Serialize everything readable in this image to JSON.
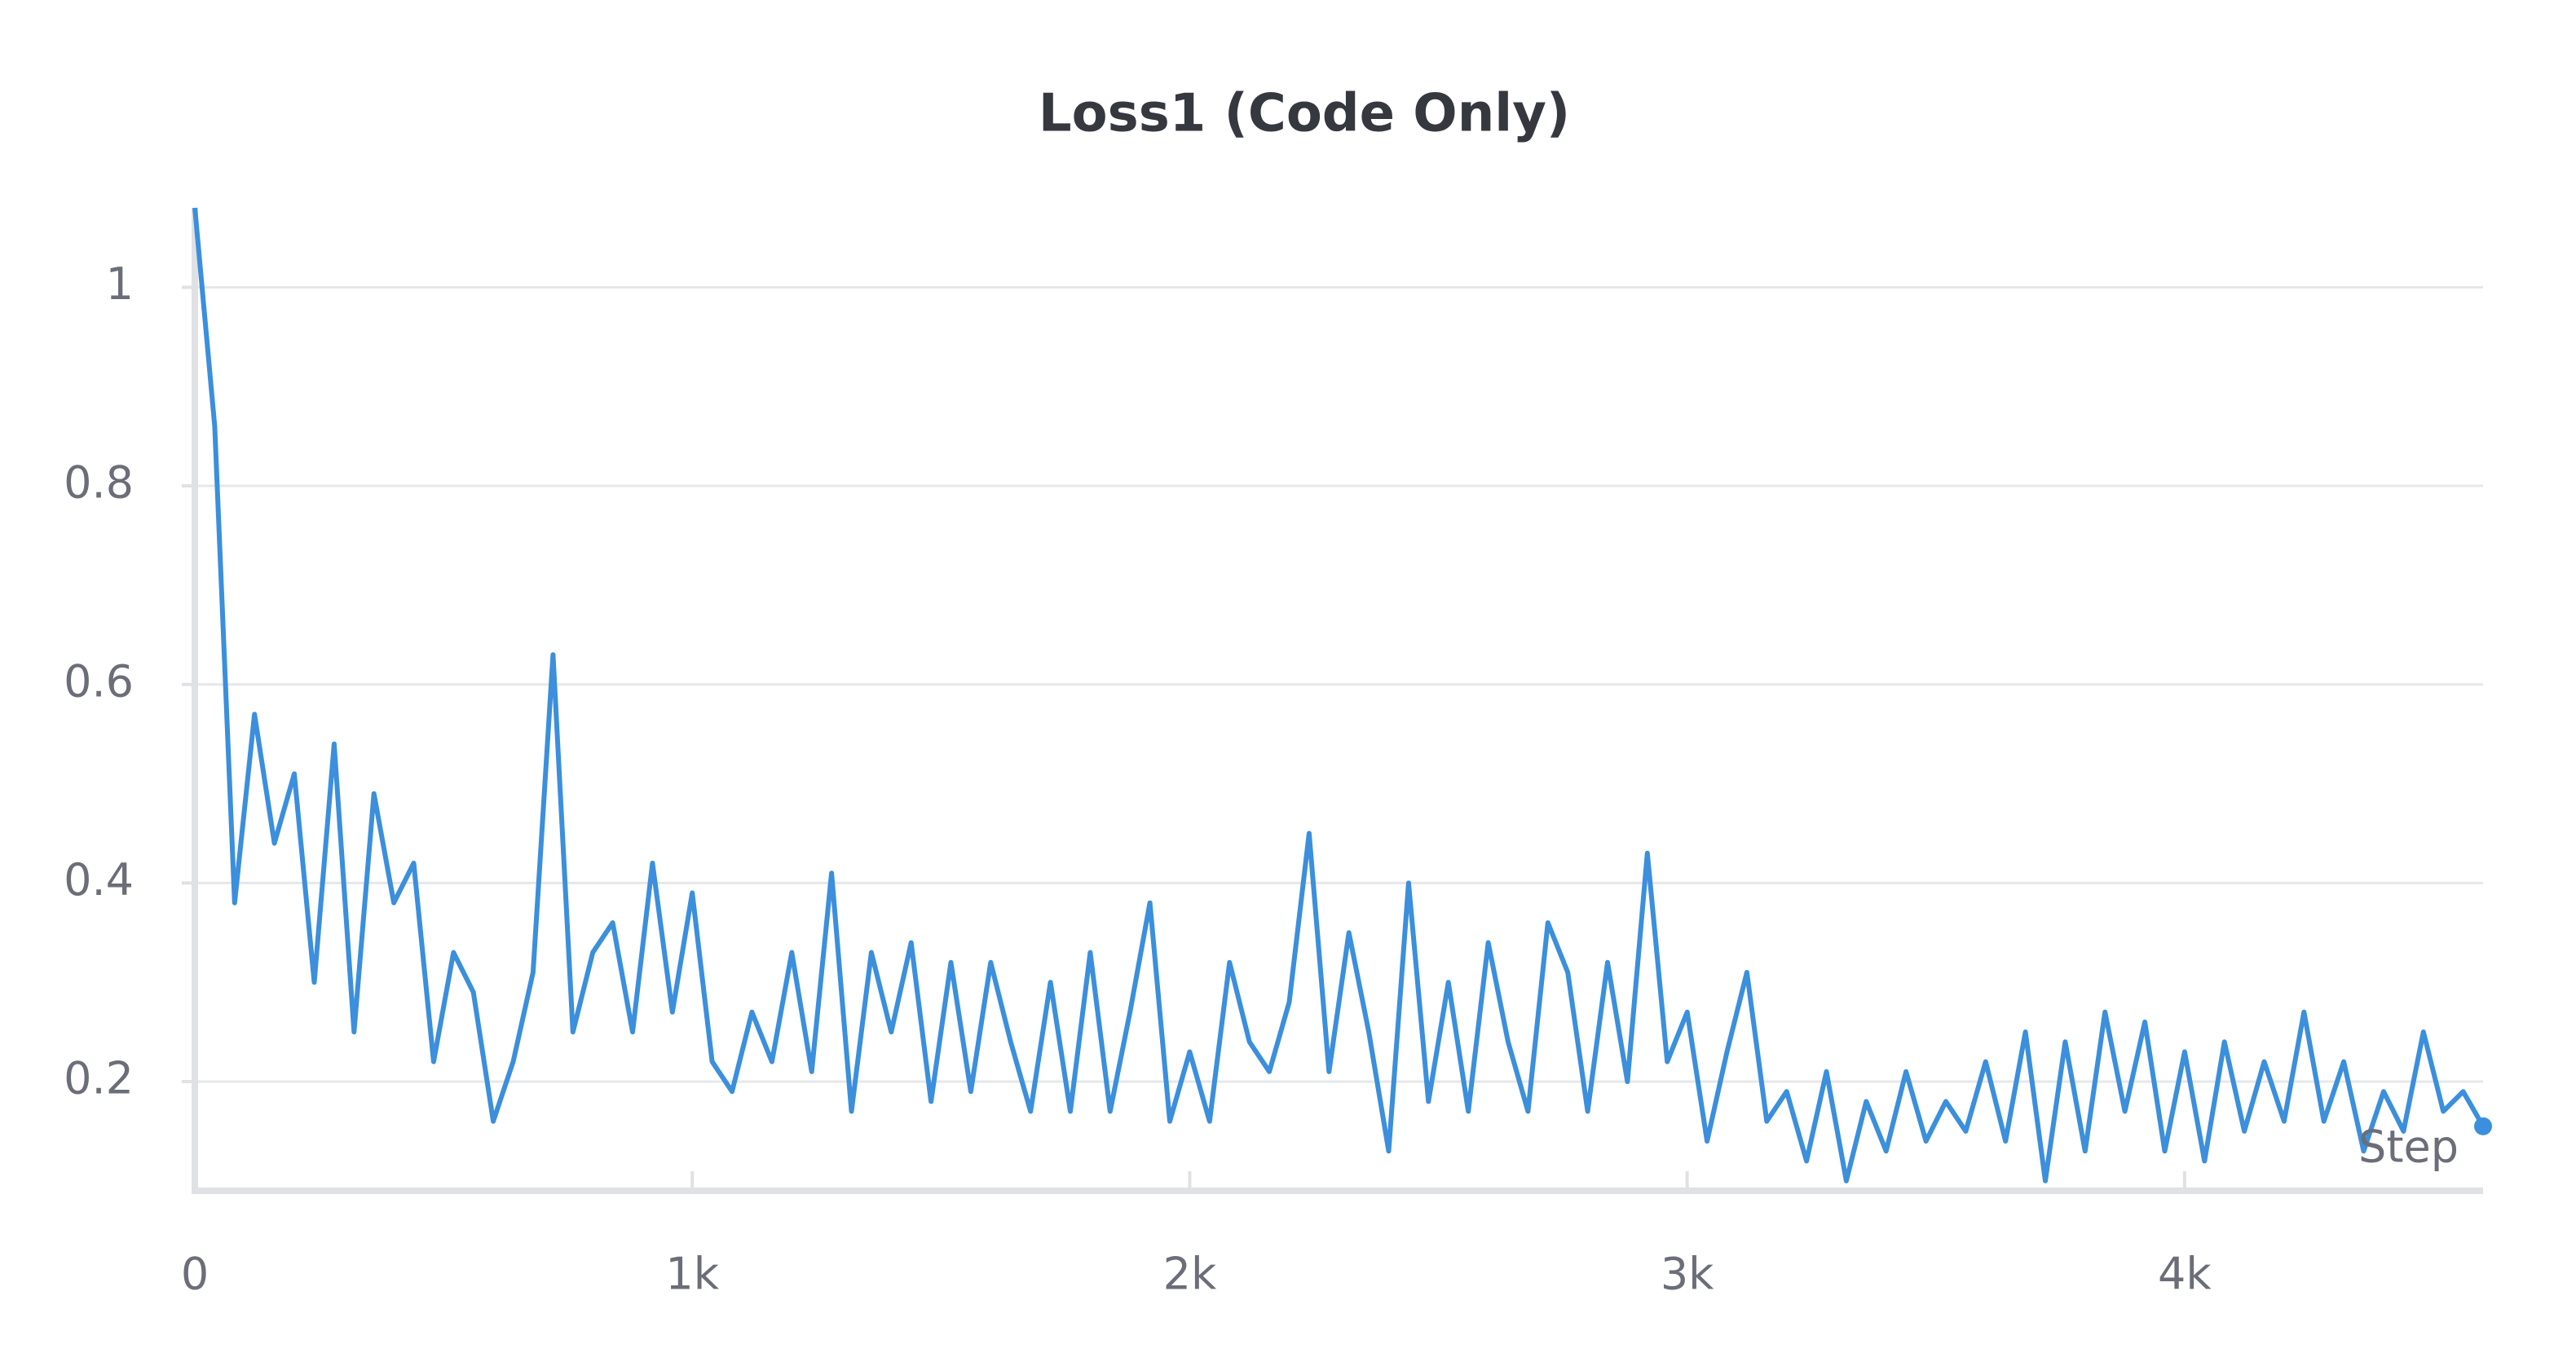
{
  "chart_data": {
    "type": "line",
    "title": "Loss1 (Code Only)",
    "x_label": "Step",
    "color": "#3b8fdc",
    "x": [
      0,
      40,
      80,
      120,
      160,
      200,
      240,
      280,
      320,
      360,
      400,
      440,
      480,
      520,
      560,
      600,
      640,
      680,
      720,
      760,
      800,
      840,
      880,
      920,
      960,
      1000,
      1040,
      1080,
      1120,
      1160,
      1200,
      1240,
      1280,
      1320,
      1360,
      1400,
      1440,
      1480,
      1520,
      1560,
      1600,
      1640,
      1680,
      1720,
      1760,
      1800,
      1840,
      1880,
      1920,
      1960,
      2000,
      2040,
      2080,
      2120,
      2160,
      2200,
      2240,
      2280,
      2320,
      2360,
      2400,
      2440,
      2480,
      2520,
      2560,
      2600,
      2640,
      2680,
      2720,
      2760,
      2800,
      2840,
      2880,
      2920,
      2960,
      3000,
      3040,
      3080,
      3120,
      3160,
      3200,
      3240,
      3280,
      3320,
      3360,
      3400,
      3440,
      3480,
      3520,
      3560,
      3600,
      3640,
      3680,
      3720,
      3760,
      3800,
      3840,
      3880,
      3920,
      3960,
      4000,
      4040,
      4080,
      4120,
      4160,
      4200,
      4240,
      4280,
      4320,
      4360,
      4400,
      4440,
      4480,
      4520,
      4560,
      4600
    ],
    "values": [
      1.08,
      0.86,
      0.38,
      0.57,
      0.44,
      0.51,
      0.3,
      0.54,
      0.25,
      0.49,
      0.38,
      0.42,
      0.22,
      0.33,
      0.29,
      0.16,
      0.22,
      0.31,
      0.63,
      0.25,
      0.33,
      0.36,
      0.25,
      0.42,
      0.27,
      0.39,
      0.22,
      0.19,
      0.27,
      0.22,
      0.33,
      0.21,
      0.41,
      0.17,
      0.33,
      0.25,
      0.34,
      0.18,
      0.32,
      0.19,
      0.32,
      0.24,
      0.17,
      0.3,
      0.17,
      0.33,
      0.17,
      0.27,
      0.38,
      0.16,
      0.23,
      0.16,
      0.32,
      0.24,
      0.21,
      0.28,
      0.45,
      0.21,
      0.35,
      0.25,
      0.13,
      0.4,
      0.18,
      0.3,
      0.17,
      0.34,
      0.24,
      0.17,
      0.36,
      0.31,
      0.17,
      0.32,
      0.2,
      0.43,
      0.22,
      0.27,
      0.14,
      0.23,
      0.31,
      0.16,
      0.19,
      0.12,
      0.21,
      0.1,
      0.18,
      0.13,
      0.21,
      0.14,
      0.18,
      0.15,
      0.22,
      0.14,
      0.25,
      0.1,
      0.24,
      0.13,
      0.27,
      0.17,
      0.26,
      0.13,
      0.23,
      0.12,
      0.24,
      0.15,
      0.22,
      0.16,
      0.27,
      0.16,
      0.22,
      0.13,
      0.19,
      0.15,
      0.25,
      0.17,
      0.19,
      0.155
    ],
    "xlim": [
      0,
      4600
    ],
    "ylim": [
      0.09,
      1.08
    ],
    "xticks": [
      0,
      {
        "value": 1000,
        "label": "1k"
      },
      {
        "value": 2000,
        "label": "2k"
      },
      {
        "value": 3000,
        "label": "3k"
      },
      {
        "value": 4000,
        "label": "4k"
      }
    ],
    "yticks": [
      0.2,
      0.4,
      0.6,
      0.8,
      1
    ],
    "grid": true
  }
}
